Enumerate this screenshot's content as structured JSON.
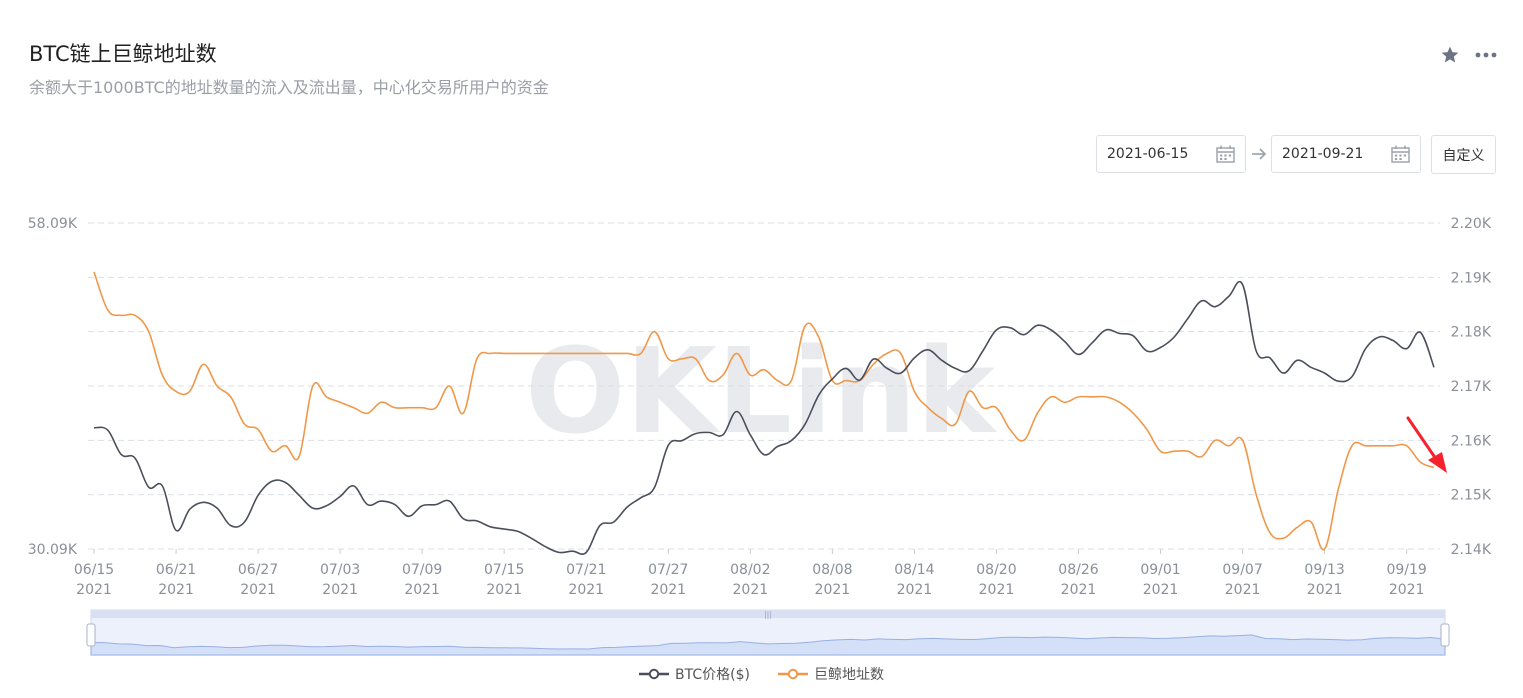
{
  "header": {
    "title": "BTC链上巨鲸地址数",
    "subtitle": "余额大于1000BTC的地址数量的流入及流出量，中心化交易所用户的资金"
  },
  "controls": {
    "start_date": "2021-06-15",
    "end_date": "2021-09-21",
    "custom_label": "自定义"
  },
  "colors": {
    "btc": "#4b4f5c",
    "whale": "#f0984a",
    "grid": "#dcdfe6",
    "axis_text": "#8a8f99",
    "navigator_fill": "#dfe7fb",
    "annotation": "#f5222d"
  },
  "watermark": "OKLink",
  "chart_data": {
    "type": "line",
    "x": [
      "06/15",
      "06/16",
      "06/17",
      "06/18",
      "06/19",
      "06/20",
      "06/21",
      "06/22",
      "06/23",
      "06/24",
      "06/25",
      "06/26",
      "06/27",
      "06/28",
      "06/29",
      "06/30",
      "07/01",
      "07/02",
      "07/03",
      "07/04",
      "07/05",
      "07/06",
      "07/07",
      "07/08",
      "07/09",
      "07/10",
      "07/11",
      "07/12",
      "07/13",
      "07/14",
      "07/15",
      "07/16",
      "07/17",
      "07/18",
      "07/19",
      "07/20",
      "07/21",
      "07/22",
      "07/23",
      "07/24",
      "07/25",
      "07/26",
      "07/27",
      "07/28",
      "07/29",
      "07/30",
      "07/31",
      "08/01",
      "08/02",
      "08/03",
      "08/04",
      "08/05",
      "08/06",
      "08/07",
      "08/08",
      "08/09",
      "08/10",
      "08/11",
      "08/12",
      "08/13",
      "08/14",
      "08/15",
      "08/16",
      "08/17",
      "08/18",
      "08/19",
      "08/20",
      "08/21",
      "08/22",
      "08/23",
      "08/24",
      "08/25",
      "08/26",
      "08/27",
      "08/28",
      "08/29",
      "08/30",
      "08/31",
      "09/01",
      "09/02",
      "09/03",
      "09/04",
      "09/05",
      "09/06",
      "09/07",
      "09/08",
      "09/09",
      "09/10",
      "09/11",
      "09/12",
      "09/13",
      "09/14",
      "09/15",
      "09/16",
      "09/17",
      "09/18",
      "09/19",
      "09/20",
      "09/21"
    ],
    "x_tick_labels": [
      "06/15",
      "06/21",
      "06/27",
      "07/03",
      "07/09",
      "07/15",
      "07/21",
      "07/27",
      "08/02",
      "08/08",
      "08/14",
      "08/20",
      "08/26",
      "09/01",
      "09/07",
      "09/13",
      "09/19"
    ],
    "x_tick_year": "2021",
    "y_left": {
      "min": 30.09,
      "max": 58.09,
      "tick_labels": [
        "30.09K",
        "58.09K"
      ]
    },
    "y_right": {
      "min": 2.14,
      "max": 2.2,
      "tick_labels": [
        "2.14K",
        "2.15K",
        "2.16K",
        "2.17K",
        "2.18K",
        "2.19K",
        "2.20K"
      ]
    },
    "series": [
      {
        "name": "BTC价格($)",
        "axis": "left",
        "values": [
          40.5,
          40.3,
          38.2,
          37.9,
          35.4,
          35.5,
          31.7,
          33.5,
          34.1,
          33.6,
          32.1,
          32.4,
          34.7,
          35.9,
          35.8,
          34.7,
          33.6,
          33.8,
          34.6,
          35.5,
          33.9,
          34.2,
          33.9,
          32.9,
          33.8,
          33.9,
          34.2,
          32.7,
          32.5,
          32.0,
          31.8,
          31.6,
          31.0,
          30.3,
          29.8,
          29.9,
          29.8,
          32.1,
          32.4,
          33.7,
          34.5,
          35.4,
          39.0,
          39.4,
          40.0,
          40.1,
          39.9,
          41.9,
          39.9,
          38.2,
          38.9,
          39.4,
          40.8,
          43.3,
          44.7,
          45.6,
          44.6,
          46.4,
          45.6,
          45.2,
          46.5,
          47.2,
          46.3,
          45.6,
          45.4,
          47.1,
          48.9,
          49.1,
          48.5,
          49.3,
          48.9,
          47.9,
          46.8,
          47.8,
          48.9,
          48.6,
          48.4,
          47.1,
          47.4,
          48.3,
          49.9,
          51.4,
          50.9,
          51.8,
          52.8,
          47.1,
          46.5,
          45.2,
          46.3,
          45.7,
          45.2,
          44.5,
          44.9,
          47.3,
          48.3,
          48.0,
          47.3,
          48.7,
          45.7
        ]
      },
      {
        "name": "巨鲸地址数",
        "axis": "right",
        "values": [
          2.191,
          2.184,
          2.183,
          2.183,
          2.18,
          2.172,
          2.169,
          2.169,
          2.174,
          2.17,
          2.168,
          2.163,
          2.162,
          2.158,
          2.159,
          2.157,
          2.17,
          2.168,
          2.167,
          2.166,
          2.165,
          2.167,
          2.166,
          2.166,
          2.166,
          2.166,
          2.17,
          2.165,
          2.175,
          2.176,
          2.176,
          2.176,
          2.176,
          2.176,
          2.176,
          2.176,
          2.176,
          2.176,
          2.176,
          2.176,
          2.176,
          2.18,
          2.175,
          2.175,
          2.175,
          2.171,
          2.172,
          2.176,
          2.172,
          2.173,
          2.171,
          2.171,
          2.181,
          2.179,
          2.171,
          2.171,
          2.171,
          2.174,
          2.176,
          2.176,
          2.169,
          2.166,
          2.164,
          2.163,
          2.169,
          2.166,
          2.166,
          2.162,
          2.16,
          2.165,
          2.168,
          2.167,
          2.168,
          2.168,
          2.168,
          2.167,
          2.165,
          2.162,
          2.158,
          2.158,
          2.158,
          2.157,
          2.16,
          2.159,
          2.16,
          2.15,
          2.143,
          2.142,
          2.144,
          2.145,
          2.14,
          2.151,
          2.159,
          2.159,
          2.159,
          2.159,
          2.159,
          2.156,
          2.155
        ]
      }
    ],
    "legend_position": "bottom-center",
    "grid": true
  }
}
